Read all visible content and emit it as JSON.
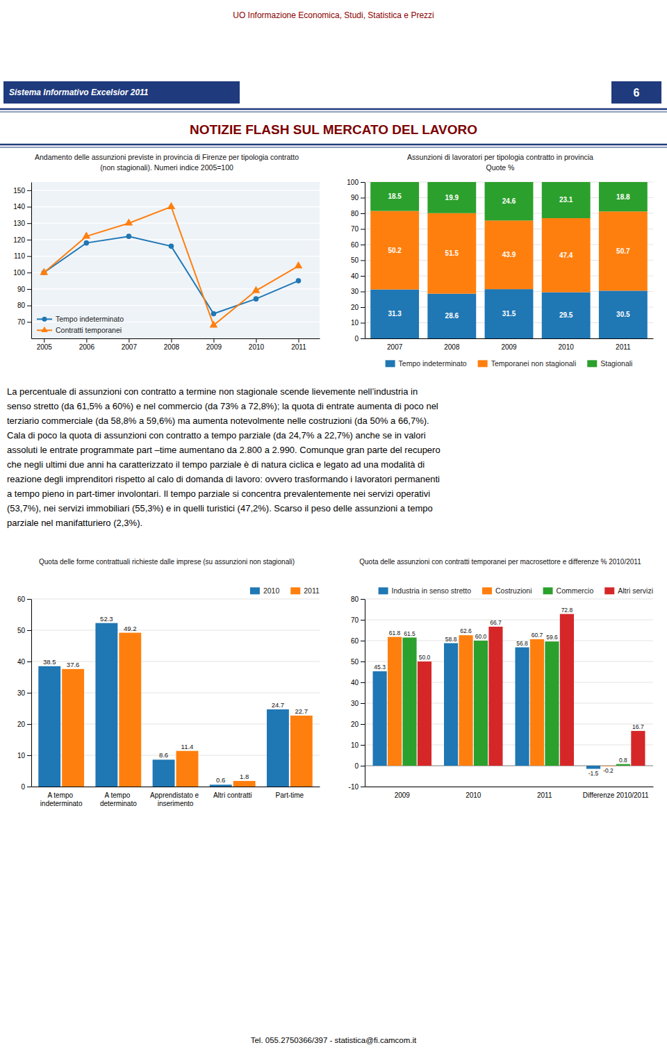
{
  "header_subtitle": "UO Informazione Economica, Studi, Statistica e Prezzi",
  "header_title_left": "Sistema Informativo Excelsior 2011",
  "header_title_right": "6",
  "main_title": "NOTIZIE FLASH SUL MERCATO DEL LAVORO",
  "text_body_lines": [
    "La percentuale di assunzioni con contratto a termine non stagionale scende lievemente nell’industria in",
    "senso stretto (da 61,5% a 60%) e nel commercio (da 73% a 72,8%); la quota di entrate aumenta di poco nel",
    "terziario commerciale (da 58,8% a 59,6%) ma aumenta notevolmente nelle costruzioni (da 50% a 66,7%).",
    "Cala di poco la quota di assunzioni con contratto a tempo parziale (da 24,7% a 22,7%) anche se in valori",
    "assoluti le entrate programmate part –time aumentano da 2.800 a 2.990. Comunque gran parte del recupero",
    "che negli ultimi due anni ha caratterizzato il tempo parziale è di natura ciclica e legato ad una modalità di",
    "reazione degli imprenditori rispetto al calo di domanda di lavoro: ovvero trasformando i lavoratori permanenti",
    "a tempo pieno in part-timer involontari. Il tempo parziale si concentra  prevalentemente nei servizi operativi",
    "(53,7%), nei servizi immobiliari (55,3%) e in quelli turistici (47,2%). Scarso il peso delle assunzioni a tempo",
    "parziale nel manifatturiero (2,3%)."
  ],
  "footer": "Tel. 055.2750366/397  -  statistica@fi.camcom.it",
  "chart_data": [
    {
      "type": "line",
      "title": "Andamento delle assunzioni previste in provincia di Firenze per tipologia contratto",
      "subtitle": "(non stagionali). Numeri indice 2005=100",
      "x": [
        2005,
        2006,
        2007,
        2008,
        2009,
        2010,
        2011
      ],
      "xlim": [
        2004.7,
        2011.5
      ],
      "xticks": [
        2005,
        2006,
        2007,
        2008,
        2009,
        2010,
        2011
      ],
      "ylim": [
        60,
        155
      ],
      "yticks": [
        70,
        80,
        90,
        100,
        110,
        120,
        130,
        140,
        150
      ],
      "grid": true,
      "legend": "lower-left",
      "series": [
        {
          "name": "Tempo indeterminato",
          "marker": "circle",
          "values": [
            100,
            118,
            122,
            116,
            75,
            84,
            95
          ]
        },
        {
          "name": "Contratti temporanei",
          "marker": "triangle",
          "values": [
            100,
            122,
            130,
            140,
            68,
            89,
            104
          ]
        }
      ]
    },
    {
      "type": "bar",
      "stacked": true,
      "title": "Assunzioni di lavoratori per tipologia contratto in provincia",
      "subtitle": "Quote %",
      "categories": [
        "2007",
        "2008",
        "2009",
        "2010",
        "2011"
      ],
      "ylim": [
        0,
        100
      ],
      "yticks": [
        0,
        10,
        20,
        30,
        40,
        50,
        60,
        70,
        80,
        90,
        100
      ],
      "grid": true,
      "data_labels": true,
      "legend": "bottom",
      "series": [
        {
          "name": "Tempo indeterminato",
          "values": [
            31.3,
            28.6,
            31.5,
            29.5,
            30.5
          ]
        },
        {
          "name": "Temporanei non stagionali",
          "values": [
            50.2,
            51.5,
            43.9,
            47.4,
            50.7
          ]
        },
        {
          "name": "Stagionali",
          "values": [
            18.5,
            19.9,
            24.6,
            23.1,
            18.8
          ]
        }
      ]
    },
    {
      "type": "bar",
      "title": "Quota delle forme contrattuali richieste dalle imprese (su assunzioni non stagionali)",
      "categories": [
        "A tempo\nindeterminato",
        "A tempo\ndeterminato",
        "Apprendistato e\ninserimento",
        "Altri contratti",
        "Part-time"
      ],
      "ylim": [
        0,
        60
      ],
      "yticks": [
        0,
        10,
        20,
        30,
        40,
        50,
        60
      ],
      "grid": true,
      "data_labels": true,
      "legend": "upper-right",
      "series": [
        {
          "name": "2010",
          "values": [
            38.5,
            52.3,
            8.6,
            0.6,
            24.7
          ]
        },
        {
          "name": "2011",
          "values": [
            37.6,
            49.2,
            11.4,
            1.8,
            22.7
          ]
        }
      ]
    },
    {
      "type": "bar",
      "title": "Quota delle assunzioni con contratti temporanei per macrosettore e differenze % 2010/2011",
      "categories": [
        "2009",
        "2010",
        "2011",
        "Differenze 2010/2011"
      ],
      "ylim": [
        -10,
        80
      ],
      "yticks": [
        -10,
        0,
        10,
        20,
        30,
        40,
        50,
        60,
        70,
        80
      ],
      "grid": true,
      "data_labels": true,
      "legend": "upper-right",
      "series": [
        {
          "name": "Industria in senso stretto",
          "values": [
            45.3,
            58.8,
            56.8,
            -1.5
          ]
        },
        {
          "name": "Costruzioni",
          "values": [
            61.8,
            62.6,
            60.7,
            -0.2
          ]
        },
        {
          "name": "Commercio",
          "values": [
            61.5,
            60.0,
            59.6,
            0.8
          ],
          "value_labels": [
            "61.5",
            "60.0",
            "59.6",
            "0.8"
          ]
        },
        {
          "name": "Altri servizi",
          "values": [
            50.0,
            66.7,
            72.8,
            16.7
          ],
          "value_labels": [
            "50.0",
            "66.7",
            "72.8",
            "16.7"
          ]
        }
      ]
    }
  ]
}
